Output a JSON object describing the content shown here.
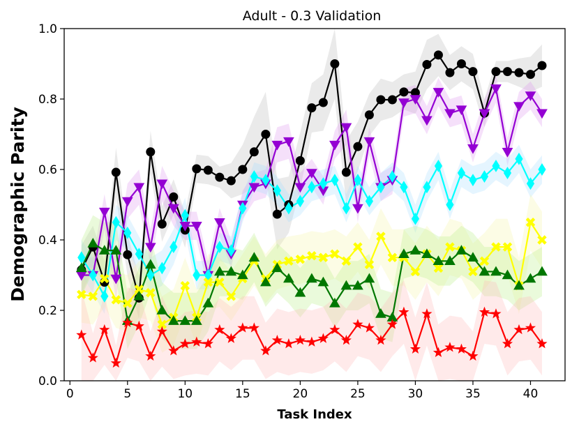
{
  "chart_data": {
    "type": "line",
    "title": "Adult - 0.3 Validation",
    "xlabel": "Task Index",
    "ylabel": "Demographic Parity",
    "xlim": [
      -0.5,
      43
    ],
    "ylim": [
      0.0,
      1.0
    ],
    "xticks": [
      0,
      5,
      10,
      15,
      20,
      25,
      30,
      35,
      40
    ],
    "xtick_labels": [
      "0",
      "5",
      "10",
      "15",
      "20",
      "25",
      "30",
      "35",
      "40"
    ],
    "yticks": [
      0.0,
      0.2,
      0.4,
      0.6,
      0.8,
      1.0
    ],
    "ytick_labels": [
      "0.0",
      "0.2",
      "0.4",
      "0.6",
      "0.8",
      "1.0"
    ],
    "grid": false,
    "legend": "none",
    "x": [
      1,
      2,
      3,
      4,
      5,
      6,
      7,
      8,
      9,
      10,
      11,
      12,
      13,
      14,
      15,
      16,
      17,
      18,
      19,
      20,
      21,
      22,
      23,
      24,
      25,
      26,
      27,
      28,
      29,
      30,
      31,
      32,
      33,
      34,
      35,
      36,
      37,
      38,
      39,
      40,
      41
    ],
    "series": [
      {
        "name": "black",
        "color": "#000000",
        "band_color": "#bbbbbb",
        "marker": "circle",
        "values": [
          0.315,
          0.38,
          0.28,
          0.592,
          0.358,
          0.235,
          0.65,
          0.445,
          0.522,
          0.428,
          0.602,
          0.598,
          0.578,
          0.568,
          0.6,
          0.65,
          0.7,
          0.473,
          0.5,
          0.625,
          0.775,
          0.79,
          0.9,
          0.592,
          0.665,
          0.755,
          0.798,
          0.798,
          0.82,
          0.818,
          0.898,
          0.925,
          0.875,
          0.9,
          0.878,
          0.76,
          0.878,
          0.878,
          0.875,
          0.87,
          0.895
        ],
        "band": [
          0.07,
          0.06,
          0.06,
          0.07,
          0.06,
          0.06,
          0.06,
          0.05,
          0.05,
          0.05,
          0.04,
          0.04,
          0.03,
          0.05,
          0.07,
          0.1,
          0.12,
          0.1,
          0.08,
          0.08,
          0.07,
          0.08,
          0.1,
          0.09,
          0.07,
          0.06,
          0.06,
          0.05,
          0.05,
          0.06,
          0.07,
          0.06,
          0.05,
          0.05,
          0.05,
          0.04,
          0.03,
          0.03,
          0.04,
          0.05,
          0.06
        ]
      },
      {
        "name": "purple",
        "color": "#9400d3",
        "band_color": "#dd99ee",
        "marker": "triangle-down",
        "values": [
          0.3,
          0.3,
          0.48,
          0.29,
          0.51,
          0.55,
          0.38,
          0.56,
          0.49,
          0.44,
          0.44,
          0.3,
          0.45,
          0.36,
          0.5,
          0.55,
          0.56,
          0.67,
          0.68,
          0.55,
          0.59,
          0.54,
          0.67,
          0.72,
          0.49,
          0.68,
          0.55,
          0.57,
          0.79,
          0.8,
          0.74,
          0.82,
          0.76,
          0.77,
          0.66,
          0.76,
          0.83,
          0.65,
          0.78,
          0.81,
          0.76
        ],
        "band": [
          0.05,
          0.05,
          0.05,
          0.06,
          0.05,
          0.05,
          0.05,
          0.05,
          0.05,
          0.04,
          0.04,
          0.04,
          0.04,
          0.04,
          0.04,
          0.04,
          0.04,
          0.05,
          0.05,
          0.04,
          0.04,
          0.04,
          0.04,
          0.05,
          0.04,
          0.04,
          0.04,
          0.04,
          0.04,
          0.04,
          0.04,
          0.04,
          0.04,
          0.04,
          0.04,
          0.04,
          0.04,
          0.04,
          0.04,
          0.04,
          0.04
        ]
      },
      {
        "name": "cyan",
        "color": "#00ffff",
        "band_color": "#aaddff",
        "marker": "diamond",
        "values": [
          0.35,
          0.3,
          0.24,
          0.45,
          0.42,
          0.36,
          0.3,
          0.32,
          0.38,
          0.47,
          0.3,
          0.3,
          0.38,
          0.37,
          0.49,
          0.58,
          0.57,
          0.54,
          0.49,
          0.51,
          0.55,
          0.56,
          0.57,
          0.49,
          0.57,
          0.51,
          0.55,
          0.58,
          0.55,
          0.46,
          0.55,
          0.61,
          0.5,
          0.59,
          0.57,
          0.58,
          0.61,
          0.59,
          0.63,
          0.56,
          0.6
        ],
        "band": [
          0.05,
          0.05,
          0.05,
          0.05,
          0.05,
          0.05,
          0.05,
          0.05,
          0.05,
          0.05,
          0.04,
          0.04,
          0.04,
          0.04,
          0.04,
          0.04,
          0.04,
          0.04,
          0.04,
          0.04,
          0.04,
          0.04,
          0.04,
          0.04,
          0.04,
          0.04,
          0.04,
          0.04,
          0.04,
          0.04,
          0.04,
          0.04,
          0.04,
          0.04,
          0.04,
          0.04,
          0.04,
          0.04,
          0.04,
          0.04,
          0.04
        ]
      },
      {
        "name": "yellow",
        "color": "#ffff00",
        "band_color": "#f5f5aa",
        "marker": "x-filled",
        "values": [
          0.245,
          0.24,
          0.29,
          0.23,
          0.22,
          0.26,
          0.25,
          0.16,
          0.18,
          0.27,
          0.18,
          0.28,
          0.28,
          0.24,
          0.29,
          0.34,
          0.29,
          0.33,
          0.34,
          0.345,
          0.355,
          0.35,
          0.36,
          0.34,
          0.38,
          0.33,
          0.41,
          0.35,
          0.35,
          0.31,
          0.36,
          0.32,
          0.38,
          0.37,
          0.31,
          0.34,
          0.38,
          0.38,
          0.27,
          0.45,
          0.4
        ],
        "band": [
          0.08,
          0.08,
          0.08,
          0.08,
          0.08,
          0.08,
          0.08,
          0.08,
          0.08,
          0.08,
          0.08,
          0.08,
          0.07,
          0.07,
          0.07,
          0.07,
          0.07,
          0.07,
          0.07,
          0.07,
          0.07,
          0.07,
          0.07,
          0.07,
          0.07,
          0.07,
          0.08,
          0.08,
          0.08,
          0.08,
          0.08,
          0.08,
          0.08,
          0.08,
          0.08,
          0.08,
          0.08,
          0.08,
          0.08,
          0.08,
          0.08
        ]
      },
      {
        "name": "green",
        "color": "#007700",
        "band_color": "#bbee88",
        "marker": "triangle-up",
        "values": [
          0.32,
          0.39,
          0.37,
          0.37,
          0.17,
          0.24,
          0.33,
          0.2,
          0.17,
          0.17,
          0.17,
          0.22,
          0.31,
          0.31,
          0.3,
          0.35,
          0.28,
          0.32,
          0.29,
          0.25,
          0.29,
          0.28,
          0.22,
          0.27,
          0.27,
          0.29,
          0.19,
          0.18,
          0.36,
          0.37,
          0.36,
          0.34,
          0.34,
          0.37,
          0.35,
          0.31,
          0.31,
          0.3,
          0.27,
          0.29,
          0.31
        ],
        "band": [
          0.08,
          0.08,
          0.08,
          0.08,
          0.08,
          0.08,
          0.08,
          0.08,
          0.08,
          0.08,
          0.08,
          0.08,
          0.07,
          0.07,
          0.07,
          0.07,
          0.07,
          0.07,
          0.07,
          0.07,
          0.07,
          0.07,
          0.07,
          0.07,
          0.07,
          0.07,
          0.07,
          0.07,
          0.07,
          0.07,
          0.07,
          0.07,
          0.07,
          0.07,
          0.07,
          0.07,
          0.07,
          0.07,
          0.07,
          0.07,
          0.07
        ]
      },
      {
        "name": "red",
        "color": "#ff0000",
        "band_color": "#ffbbbb",
        "marker": "star",
        "values": [
          0.13,
          0.065,
          0.145,
          0.05,
          0.165,
          0.155,
          0.07,
          0.14,
          0.085,
          0.105,
          0.11,
          0.105,
          0.145,
          0.12,
          0.15,
          0.15,
          0.085,
          0.115,
          0.105,
          0.115,
          0.11,
          0.12,
          0.145,
          0.115,
          0.16,
          0.15,
          0.115,
          0.16,
          0.195,
          0.09,
          0.19,
          0.08,
          0.095,
          0.09,
          0.07,
          0.195,
          0.19,
          0.105,
          0.145,
          0.15,
          0.105
        ],
        "band": [
          0.13,
          0.07,
          0.1,
          0.05,
          0.1,
          0.1,
          0.07,
          0.1,
          0.08,
          0.09,
          0.09,
          0.09,
          0.09,
          0.09,
          0.09,
          0.09,
          0.08,
          0.09,
          0.09,
          0.09,
          0.09,
          0.09,
          0.09,
          0.09,
          0.09,
          0.09,
          0.09,
          0.09,
          0.09,
          0.09,
          0.09,
          0.08,
          0.09,
          0.09,
          0.07,
          0.09,
          0.09,
          0.09,
          0.09,
          0.09,
          0.09
        ]
      }
    ]
  }
}
